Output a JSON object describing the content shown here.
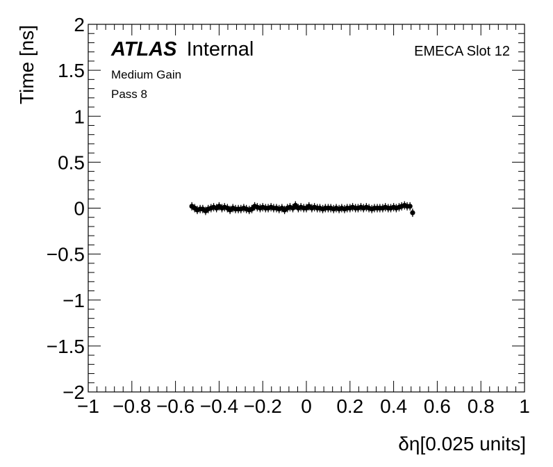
{
  "chart_data": {
    "type": "scatter",
    "xlabel": "δη[0.025 units]",
    "ylabel": "Time [ns]",
    "xlim": [
      -1,
      1
    ],
    "ylim": [
      -2,
      2
    ],
    "x_ticks": [
      "−1",
      "−0.8",
      "−0.6",
      "−0.4",
      "−0.2",
      "0",
      "0.2",
      "0.4",
      "0.6",
      "0.8",
      "1"
    ],
    "y_ticks": [
      "−2",
      "−1.5",
      "−1",
      "−0.5",
      "0",
      "0.5",
      "1",
      "1.5",
      "2"
    ],
    "annotations": {
      "atlas": "ATLAS",
      "internal": "Internal",
      "gain": "Medium Gain",
      "pass": "Pass 8",
      "slot": "EMECA Slot 12"
    },
    "marker_color": "#000000",
    "x": [
      -0.525,
      -0.512,
      -0.5,
      -0.487,
      -0.475,
      -0.462,
      -0.45,
      -0.437,
      -0.425,
      -0.412,
      -0.4,
      -0.387,
      -0.375,
      -0.362,
      -0.35,
      -0.337,
      -0.325,
      -0.312,
      -0.3,
      -0.287,
      -0.275,
      -0.262,
      -0.25,
      -0.237,
      -0.225,
      -0.212,
      -0.2,
      -0.187,
      -0.175,
      -0.162,
      -0.15,
      -0.137,
      -0.125,
      -0.112,
      -0.1,
      -0.087,
      -0.075,
      -0.062,
      -0.05,
      -0.037,
      -0.025,
      -0.012,
      0.0,
      0.012,
      0.025,
      0.037,
      0.05,
      0.062,
      0.075,
      0.087,
      0.1,
      0.112,
      0.125,
      0.137,
      0.15,
      0.162,
      0.175,
      0.187,
      0.2,
      0.212,
      0.225,
      0.237,
      0.25,
      0.262,
      0.275,
      0.287,
      0.3,
      0.312,
      0.325,
      0.337,
      0.35,
      0.362,
      0.375,
      0.387,
      0.4,
      0.412,
      0.425,
      0.437,
      0.45,
      0.462,
      0.475,
      0.487
    ],
    "y": [
      0.02,
      0.0,
      -0.02,
      -0.01,
      -0.01,
      -0.03,
      -0.01,
      0.0,
      0.01,
      0.0,
      0.02,
      0.0,
      0.01,
      0.0,
      -0.02,
      0.0,
      -0.01,
      -0.01,
      -0.01,
      0.0,
      -0.01,
      -0.02,
      -0.01,
      0.02,
      0.01,
      0.0,
      0.01,
      0.0,
      0.0,
      0.01,
      0.0,
      0.0,
      -0.01,
      0.0,
      -0.02,
      0.0,
      0.01,
      0.0,
      0.03,
      0.0,
      0.01,
      0.0,
      0.0,
      0.02,
      0.0,
      0.01,
      0.0,
      0.0,
      -0.01,
      0.0,
      0.0,
      0.0,
      -0.01,
      0.0,
      -0.01,
      0.0,
      -0.01,
      0.0,
      0.0,
      0.01,
      0.0,
      0.0,
      0.01,
      0.0,
      0.01,
      0.0,
      -0.01,
      0.0,
      0.0,
      0.0,
      0.0,
      0.01,
      0.0,
      0.0,
      0.01,
      0.0,
      0.01,
      0.02,
      0.03,
      0.02,
      0.02,
      -0.05
    ]
  }
}
